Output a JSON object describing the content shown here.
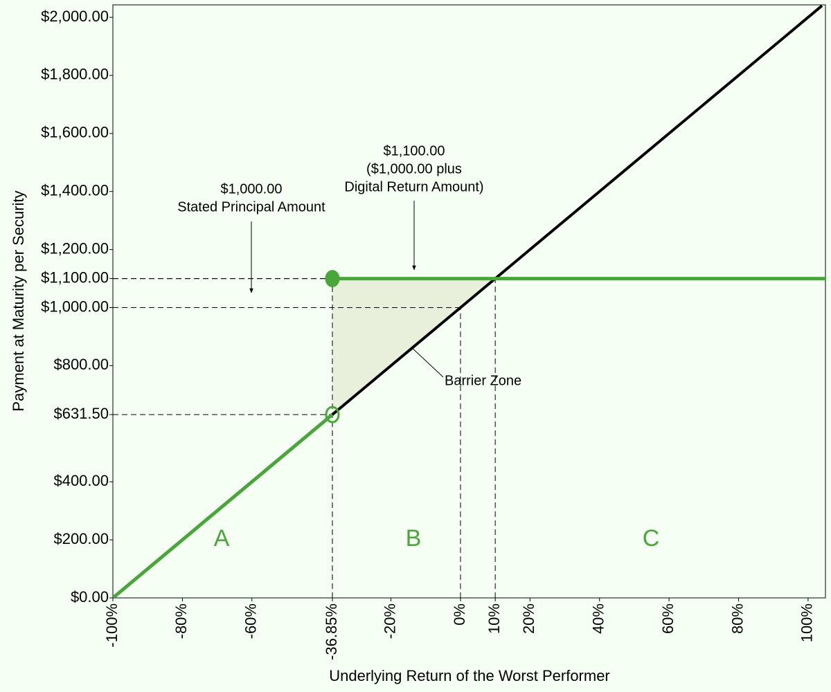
{
  "chart_data": {
    "type": "line",
    "x_label": "Underlying Return of the Worst Performer",
    "y_label": "Payment at Maturity per Security",
    "xlim": [
      -100,
      105
    ],
    "ylim": [
      0,
      2043
    ],
    "xticks": [
      {
        "value": -100,
        "label": "-100%"
      },
      {
        "value": -80,
        "label": "-80%"
      },
      {
        "value": -60,
        "label": "-60%"
      },
      {
        "value": -36.85,
        "label": "-36.85%"
      },
      {
        "value": -20,
        "label": "-20%"
      },
      {
        "value": 0,
        "label": "0%"
      },
      {
        "value": 10,
        "label": "10%"
      },
      {
        "value": 20,
        "label": "20%"
      },
      {
        "value": 40,
        "label": "40%"
      },
      {
        "value": 60,
        "label": "60%"
      },
      {
        "value": 80,
        "label": "80%"
      },
      {
        "value": 100,
        "label": "100%"
      }
    ],
    "yticks": [
      {
        "value": 0,
        "label": "$0.00"
      },
      {
        "value": 200,
        "label": "$200.00"
      },
      {
        "value": 400,
        "label": "$400.00"
      },
      {
        "value": 631.5,
        "label": "$631.50"
      },
      {
        "value": 800,
        "label": "$800.00"
      },
      {
        "value": 1000,
        "label": "$1,000.00"
      },
      {
        "value": 1100,
        "label": "$1,100.00"
      },
      {
        "value": 1200,
        "label": "$1,200.00"
      },
      {
        "value": 1400,
        "label": "$1,400.00"
      },
      {
        "value": 1600,
        "label": "$1,600.00"
      },
      {
        "value": 1800,
        "label": "$1,800.00"
      },
      {
        "value": 2000,
        "label": "$2,000.00"
      }
    ],
    "series": [
      {
        "color": "#000000",
        "x": [
          -100,
          104
        ],
        "values": [
          0,
          2040
        ]
      },
      {
        "color": "#4aa53a",
        "x": [
          -100,
          -36.85,
          null,
          -36.85,
          105
        ],
        "values": [
          0,
          631.5,
          null,
          1100,
          1100
        ]
      }
    ],
    "markers": [
      {
        "x": -36.85,
        "y": 1100,
        "filled": true,
        "color": "#4aa53a"
      },
      {
        "x": -36.85,
        "y": 631.5,
        "filled": false,
        "color": "#4aa53a"
      }
    ],
    "barrier_zone": {
      "color": "#e8f0dc",
      "x": [
        -36.85,
        10,
        -36.85
      ],
      "y": [
        1100,
        1100,
        631.5
      ]
    },
    "reference_points": [
      {
        "x": -36.85,
        "y": 1100
      },
      {
        "x": 0,
        "y": 1000
      },
      {
        "x": -36.85,
        "y": 631.5
      },
      {
        "x": 10,
        "y": 1100
      }
    ],
    "annotations": [
      {
        "lines": [
          "$1,000.00",
          "Stated Principal Amount"
        ]
      },
      {
        "lines": [
          "$1,100.00",
          "($1,000.00 plus",
          "Digital Return Amount)"
        ]
      },
      {
        "lines": [
          "Barrier Zone"
        ]
      }
    ],
    "region_labels": [
      "A",
      "B",
      "C"
    ]
  }
}
